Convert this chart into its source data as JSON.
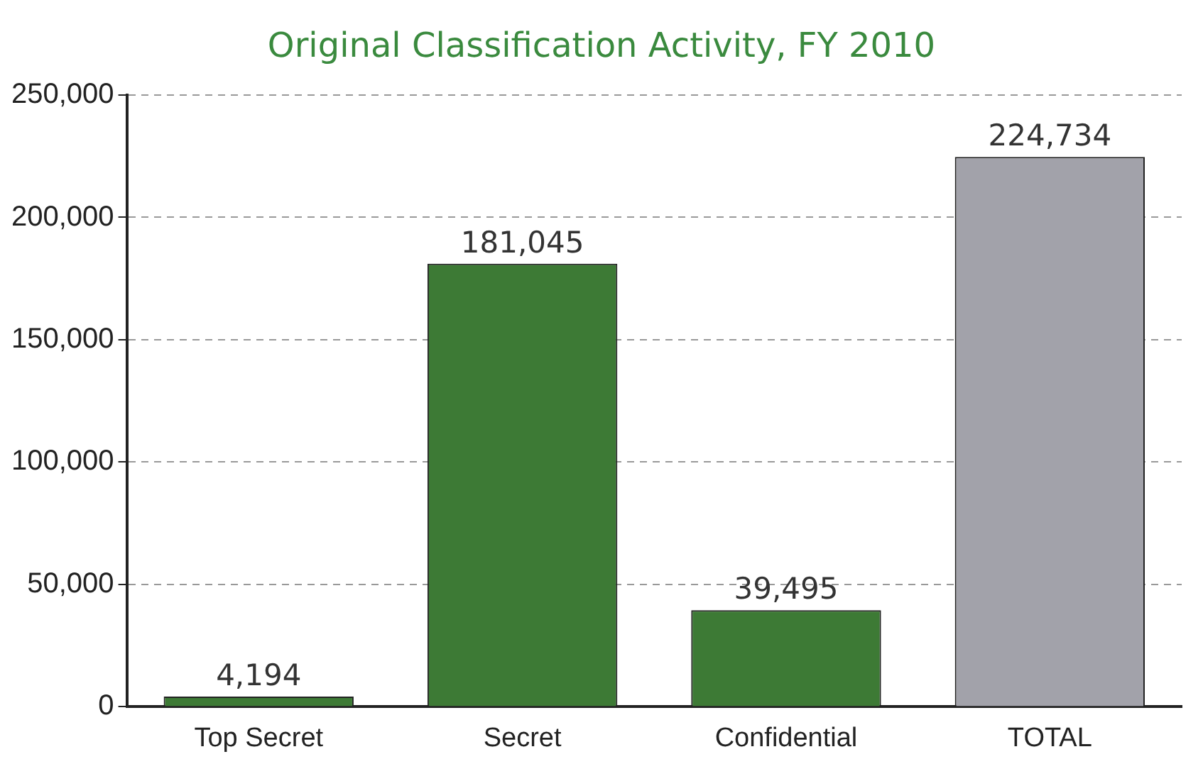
{
  "chart_data": {
    "type": "bar",
    "title": "Original Classification Activity, FY 2010",
    "categories": [
      "Top Secret",
      "Secret",
      "Confidential",
      "TOTAL"
    ],
    "values": [
      4194,
      181045,
      39495,
      224734
    ],
    "value_labels": [
      "4,194",
      "181,045",
      "39,495",
      "224,734"
    ],
    "colors": [
      "#3d7a35",
      "#3d7a35",
      "#3d7a35",
      "#a2a2aa"
    ],
    "ylim": [
      0,
      250000
    ],
    "yticks": [
      {
        "value": 0,
        "label": "0"
      },
      {
        "value": 50000,
        "label": "50,000"
      },
      {
        "value": 100000,
        "label": "100,000"
      },
      {
        "value": 150000,
        "label": "150,000"
      },
      {
        "value": 200000,
        "label": "200,000"
      },
      {
        "value": 250000,
        "label": "250,000"
      }
    ],
    "grid": "y",
    "legend": false
  }
}
